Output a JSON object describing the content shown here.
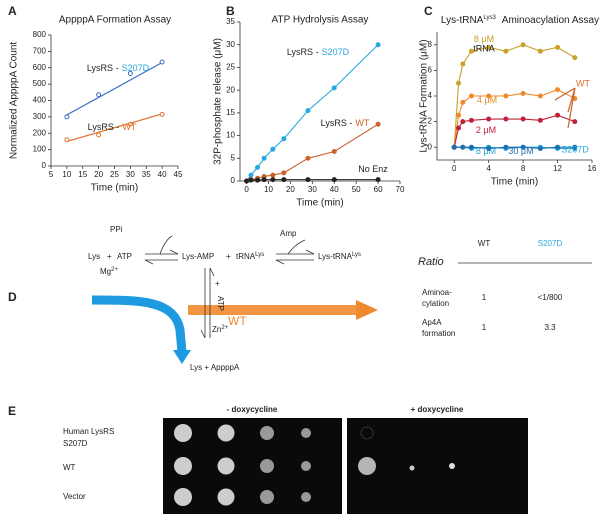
{
  "panel_labels": [
    "A",
    "B",
    "C",
    "D",
    "E"
  ],
  "chart_data": [
    {
      "type": "scatter",
      "title": "AppppA Formation Assay",
      "x_label": "Time (min)",
      "y_label": "Normalized AppppA Count",
      "label_prefix": "LysRS -",
      "xlim": [
        5,
        45
      ],
      "xticks": [
        5,
        10,
        15,
        20,
        25,
        30,
        35,
        40,
        45
      ],
      "ylim": [
        0,
        800
      ],
      "yticks": [
        0,
        100,
        200,
        300,
        400,
        500,
        600,
        700,
        800
      ],
      "series": [
        {
          "name": "S207D",
          "color": "#3b6cc4",
          "label_color": "#26a9e0",
          "x": [
            10,
            20,
            30,
            40
          ],
          "values": [
            300,
            435,
            565,
            635
          ],
          "fit": {
            "x": [
              10,
              40
            ],
            "values": [
              312,
              632
            ]
          }
        },
        {
          "name": "WT",
          "color": "#e0702c",
          "x": [
            10,
            20,
            30,
            40
          ],
          "values": [
            160,
            190,
            255,
            315
          ],
          "fit": {
            "x": [
              10,
              40
            ],
            "values": [
              150,
              318
            ]
          }
        }
      ]
    },
    {
      "type": "line",
      "title": "ATP Hydrolysis Assay",
      "x_label": "Time (min)",
      "y_label": "32P-phosphate release (μM)",
      "label_prefix": "LysRS -",
      "xlim": [
        -3,
        70
      ],
      "xticks": [
        0,
        10,
        20,
        30,
        40,
        50,
        60,
        70
      ],
      "ylim": [
        0,
        35
      ],
      "yticks": [
        0,
        5,
        10,
        15,
        20,
        25,
        30,
        35
      ],
      "series": [
        {
          "name": "S207D",
          "color": "#26a9e0",
          "x": [
            0,
            2,
            5,
            8,
            12,
            17,
            28,
            40,
            60
          ],
          "values": [
            0,
            1.3,
            3,
            5,
            7,
            9.3,
            15.5,
            20.5,
            30
          ]
        },
        {
          "name": "WT",
          "color": "#c8622a",
          "x": [
            0,
            2,
            5,
            8,
            12,
            17,
            28,
            40,
            60
          ],
          "values": [
            0,
            0.3,
            0.6,
            1,
            1.3,
            1.8,
            5,
            6.5,
            12.5
          ]
        },
        {
          "name": "No Enz",
          "color": "#222222",
          "prefix": false,
          "x": [
            0,
            2,
            5,
            8,
            12,
            17,
            28,
            40,
            60
          ],
          "values": [
            0,
            0.2,
            0.2,
            0.3,
            0.3,
            0.3,
            0.3,
            0.3,
            0.3
          ]
        }
      ]
    },
    {
      "type": "line",
      "title": "Lys-tRNA",
      "title_sup": "Lys3",
      "title_end": "Aminoacylation Assay",
      "x_label": "Time (min)",
      "y_label": "Lys-tRNA Formation (μM)",
      "xlim": [
        -2,
        16
      ],
      "xticks": [
        0,
        4,
        8,
        12,
        16
      ],
      "ylim": [
        -1,
        9
      ],
      "yticks": [
        0,
        2,
        4,
        6,
        8
      ],
      "annotations": [
        "tRNA",
        "WT",
        "S207D"
      ],
      "series": [
        {
          "name": "8 μM",
          "color": "#c9a227",
          "x": [
            0,
            0.5,
            1,
            2,
            4,
            6,
            8,
            10,
            12,
            14
          ],
          "values": [
            0,
            5,
            6.5,
            7.5,
            7.8,
            7.5,
            8,
            7.5,
            7.8,
            7
          ]
        },
        {
          "name": "4 μM",
          "color": "#ef8a2a",
          "x": [
            0,
            0.5,
            1,
            2,
            4,
            6,
            8,
            10,
            12,
            14
          ],
          "values": [
            0,
            2.5,
            3.5,
            4,
            4,
            4,
            4.2,
            4,
            4.5,
            3.8
          ]
        },
        {
          "name": "2 μM",
          "color": "#c0203a",
          "x": [
            0,
            0.5,
            1,
            2,
            4,
            6,
            8,
            10,
            12,
            14
          ],
          "values": [
            0,
            1.5,
            2,
            2.1,
            2.2,
            2.2,
            2.2,
            2.1,
            2.5,
            2
          ]
        },
        {
          "name": "8 μM",
          "color": "#26a9e0",
          "x": [
            0,
            1,
            2,
            4,
            6,
            8,
            10,
            12,
            14
          ],
          "values": [
            0,
            0,
            -0.1,
            0,
            -0.1,
            0,
            0,
            -0.1,
            -0.1
          ]
        },
        {
          "name": "30 μM",
          "color": "#1f6fb0",
          "x": [
            0,
            1,
            2,
            4,
            6,
            8,
            10,
            12,
            14
          ],
          "values": [
            0,
            0,
            0,
            -0.1,
            0,
            0,
            -0.1,
            0,
            0
          ]
        }
      ]
    }
  ],
  "pathway": {
    "lys": "Lys",
    "plus": "+",
    "atp": "ATP",
    "ppi": "PPi",
    "mg": "Mg",
    "mg_sup": "2+",
    "lys_amp": "Lys-AMP",
    "trna": "tRNA",
    "trna_sup": "Lys",
    "amp": "Amp",
    "lys_trna": "Lys-tRNA",
    "zn": "Zn",
    "zn_sup": "2+",
    "product": "Lys + AppppA",
    "p": "P",
    "wt": "WT"
  },
  "ratio_table": {
    "title": "Ratio",
    "columns": [
      "WT",
      "S207D"
    ],
    "rows": [
      {
        "label": [
          "Aminoa-",
          "cylation"
        ],
        "cells": [
          "1",
          "<1/800"
        ]
      },
      {
        "label": [
          "Ap4A",
          "formation"
        ],
        "cells": [
          "1",
          "3.3"
        ]
      }
    ]
  },
  "yeast": {
    "conditions": [
      "- doxycycline",
      "+ doxycycline"
    ],
    "rows": [
      [
        "Human LysRS",
        "S207D"
      ],
      [
        "WT"
      ],
      [
        "Vector"
      ]
    ]
  }
}
